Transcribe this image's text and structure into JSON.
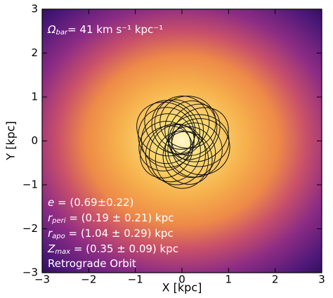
{
  "chart_data": {
    "type": "image",
    "xlabel": "X [kpc]",
    "ylabel": "Y [kpc]",
    "xlim": [
      -3,
      3
    ],
    "ylim": [
      -3,
      3
    ],
    "xticks": [
      {
        "value": -3,
        "label": "−3"
      },
      {
        "value": -2,
        "label": "−2"
      },
      {
        "value": -1,
        "label": "−1"
      },
      0,
      1,
      2,
      3
    ],
    "yticks": [
      {
        "value": -3,
        "label": "−3"
      },
      {
        "value": -2,
        "label": "−2"
      },
      {
        "value": -1,
        "label": "−1"
      },
      0,
      1,
      2,
      3
    ],
    "annotations": [
      {
        "symbol": "Ω",
        "sub": "bar",
        "text": "=  41 km s⁻¹  kpc⁻¹"
      },
      {
        "symbol": "e",
        "text": " =  (0.69±0.22)"
      },
      {
        "symbol": "r",
        "sub": "peri",
        "text": " = (0.19 ± 0.21) kpc"
      },
      {
        "symbol": "r",
        "sub": "apo",
        "text": " = (1.04 ± 0.29) kpc"
      },
      {
        "symbol": "Z",
        "sub": "max",
        "text": " = (0.35 ± 0.09) kpc"
      },
      {
        "text": "Retrograde Orbit"
      }
    ]
  }
}
